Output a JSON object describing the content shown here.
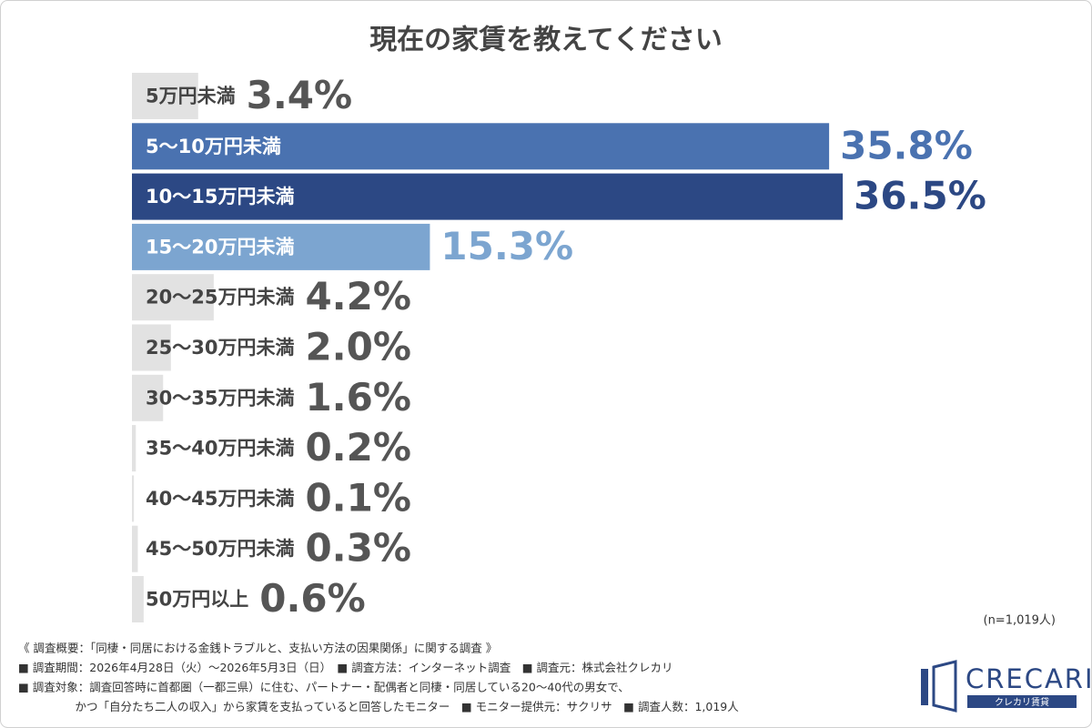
{
  "chart_data": {
    "type": "bar",
    "orientation": "horizontal",
    "title": "現在の家賃を教えてください",
    "categories": [
      "5万円未満",
      "5～10万円未満",
      "10～15万円未満",
      "15～20万円未満",
      "20～25万円未満",
      "25～30万円未満",
      "30～35万円未満",
      "35～40万円未満",
      "40～45万円未満",
      "45～50万円未満",
      "50万円以上"
    ],
    "values": [
      3.4,
      35.8,
      36.5,
      15.3,
      4.2,
      2.0,
      1.6,
      0.2,
      0.1,
      0.3,
      0.6
    ],
    "value_labels": [
      "3.4%",
      "35.8%",
      "36.5%",
      "15.3%",
      "4.2%",
      "2.0%",
      "1.6%",
      "0.2%",
      "0.1%",
      "0.3%",
      "0.6%"
    ],
    "colors": [
      "#e2e2e2",
      "#4a72b0",
      "#2c4884",
      "#7ca5d0",
      "#e2e2e2",
      "#e2e2e2",
      "#e2e2e2",
      "#e2e2e2",
      "#e2e2e2",
      "#e2e2e2",
      "#e2e2e2"
    ],
    "value_label_colors": [
      "#555555",
      "#4a72b0",
      "#2c4884",
      "#7ca5d0",
      "#555555",
      "#555555",
      "#555555",
      "#555555",
      "#555555",
      "#555555",
      "#555555"
    ],
    "category_label_colors": [
      "#444444",
      "#ffffff",
      "#ffffff",
      "#ffffff",
      "#444444",
      "#444444",
      "#444444",
      "#444444",
      "#444444",
      "#444444",
      "#444444"
    ],
    "sample_size": "(n=1,019人)",
    "notes": [
      "《 調査概要：「同棲・同居における金銭トラブルと、支払い方法の因果関係」に関する調査 》",
      "■ 調査期間：2026年4月28日（火）～2026年5月3日（日）　■ 調査方法：インターネット調査　■ 調査元：株式会社クレカリ",
      "■ 調査対象：調査回答時に首都圏（一都三県）に住む、パートナー・配偶者と同棲・同居している20～40代の男女で、",
      "　　　　　かつ「自分たち二人の収入」から家賃を支払っていると回答したモニター　■ モニター提供元：サクリサ　■ 調査人数：1,019人"
    ]
  },
  "logo": {
    "name": "CRECARI",
    "tagline": "クレカリ賃貸"
  }
}
